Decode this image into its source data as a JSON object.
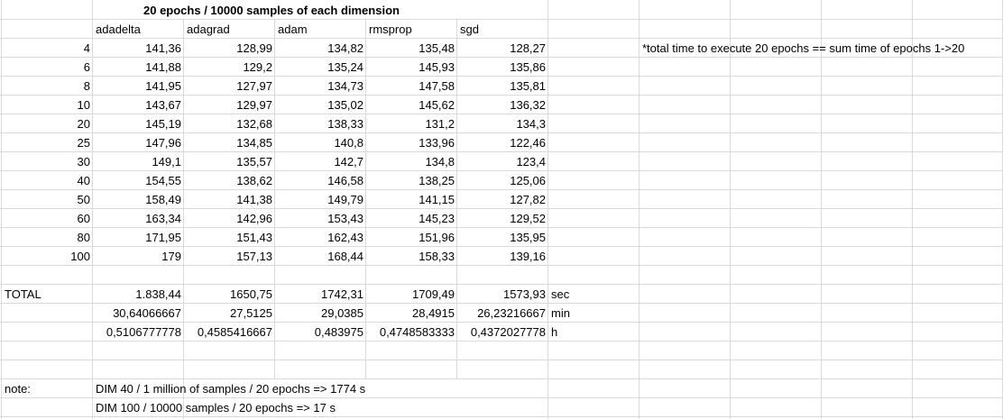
{
  "sheet": {
    "title": "20 epochs / 10000 samples of each dimension",
    "headers": [
      "adadelta",
      "adagrad",
      "adam",
      "rmsprop",
      "sgd"
    ],
    "rows": [
      {
        "dim": "4",
        "values": [
          "141,36",
          "128,99",
          "134,82",
          "135,48",
          "128,27"
        ]
      },
      {
        "dim": "6",
        "values": [
          "141,88",
          "129,2",
          "135,24",
          "145,93",
          "135,86"
        ]
      },
      {
        "dim": "8",
        "values": [
          "141,95",
          "127,97",
          "134,73",
          "147,58",
          "135,81"
        ]
      },
      {
        "dim": "10",
        "values": [
          "143,67",
          "129,97",
          "135,02",
          "145,62",
          "136,32"
        ]
      },
      {
        "dim": "20",
        "values": [
          "145,19",
          "132,68",
          "138,33",
          "131,2",
          "134,3"
        ]
      },
      {
        "dim": "25",
        "values": [
          "147,96",
          "134,85",
          "140,8",
          "133,96",
          "122,46"
        ]
      },
      {
        "dim": "30",
        "values": [
          "149,1",
          "135,57",
          "142,7",
          "134,8",
          "123,4"
        ]
      },
      {
        "dim": "40",
        "values": [
          "154,55",
          "138,62",
          "146,58",
          "138,25",
          "125,06"
        ]
      },
      {
        "dim": "50",
        "values": [
          "158,49",
          "141,38",
          "149,79",
          "141,15",
          "127,82"
        ]
      },
      {
        "dim": "60",
        "values": [
          "163,34",
          "142,96",
          "153,43",
          "145,23",
          "129,52"
        ]
      },
      {
        "dim": "80",
        "values": [
          "171,95",
          "151,43",
          "162,43",
          "151,96",
          "135,95"
        ]
      },
      {
        "dim": "100",
        "values": [
          "179",
          "157,13",
          "168,44",
          "158,33",
          "139,16"
        ]
      }
    ],
    "side_note": "*total time to execute 20 epochs == sum time of epochs 1->20",
    "totals": [
      {
        "label": "TOTAL",
        "values": [
          "1.838,44",
          "1650,75",
          "1742,31",
          "1709,49",
          "1573,93"
        ],
        "unit": "sec"
      },
      {
        "label": "",
        "values": [
          "30,64066667",
          "27,5125",
          "29,0385",
          "28,4915",
          "26,23216667"
        ],
        "unit": "min"
      },
      {
        "label": "",
        "values": [
          "0,5106777778",
          "0,4585416667",
          "0,483975",
          "0,4748583333",
          "0,4372027778"
        ],
        "unit": "h"
      }
    ],
    "note_label": "note:",
    "notes": [
      "DIM 40 / 1 million of samples / 20 epochs => 1774 s",
      "DIM 100 / 10000 samples / 20 epochs => 17 s"
    ]
  }
}
